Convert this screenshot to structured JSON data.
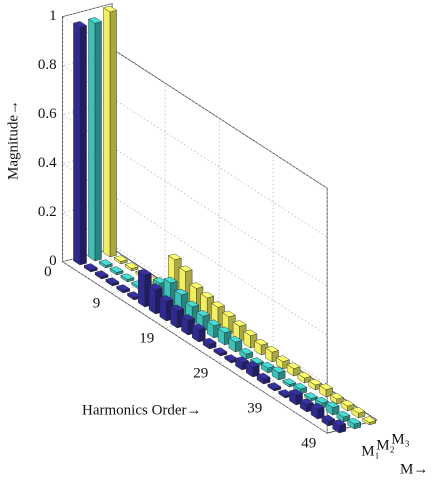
{
  "chart_data": {
    "type": "bar3d",
    "x_label": "Harmonics Order→",
    "y_label": "Magnitude→",
    "depth_label": "M→",
    "x": [
      1,
      3,
      5,
      7,
      9,
      11,
      13,
      15,
      17,
      19,
      21,
      23,
      25,
      27,
      29,
      31,
      33,
      35,
      37,
      39,
      41,
      43,
      45,
      47,
      49
    ],
    "xlim": [
      0,
      49
    ],
    "xticks": [
      0,
      9,
      19,
      29,
      39,
      49
    ],
    "ylim": [
      0,
      1
    ],
    "yticks": [
      0,
      0.2,
      0.4,
      0.6,
      0.8,
      1
    ],
    "grid": true,
    "series": [
      {
        "name": "M₁",
        "color": "#2e2a8f",
        "values": [
          0.97,
          0.01,
          0.01,
          0.01,
          0.01,
          0.01,
          0.13,
          0.1,
          0.08,
          0.07,
          0.06,
          0.05,
          0.02,
          0.01,
          0.01,
          0.03,
          0.04,
          0.02,
          0.01,
          0.01,
          0.04,
          0.03,
          0.04,
          0.02,
          0.03
        ]
      },
      {
        "name": "M₂",
        "color": "#3cc0b8",
        "values": [
          0.97,
          0.01,
          0.01,
          0.01,
          0.01,
          0.01,
          0.08,
          0.11,
          0.09,
          0.07,
          0.06,
          0.05,
          0.05,
          0.04,
          0.02,
          0.01,
          0.02,
          0.03,
          0.01,
          0.02,
          0.01,
          0.02,
          0.03,
          0.02,
          0.02
        ]
      },
      {
        "name": "M₃",
        "color": "#f2ef60",
        "values": [
          1.0,
          0.01,
          0.01,
          0.01,
          0.01,
          0.01,
          0.16,
          0.14,
          0.1,
          0.09,
          0.08,
          0.07,
          0.06,
          0.05,
          0.04,
          0.04,
          0.03,
          0.03,
          0.02,
          0.02,
          0.03,
          0.02,
          0.02,
          0.02,
          0.01
        ]
      }
    ]
  }
}
